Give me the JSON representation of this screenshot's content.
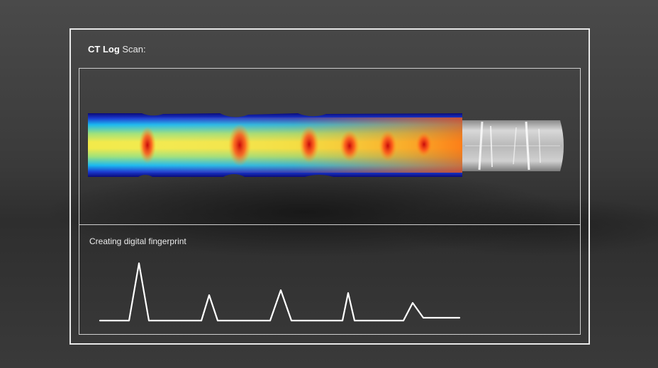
{
  "panel": {
    "title_bold": "CT Log",
    "title_rest": " Scan:"
  },
  "fingerprint": {
    "caption": "Creating digital fingerprint"
  },
  "colors": {
    "frame": "#e8e8e8",
    "background": "#3b3b3b",
    "heat_low": "#0a1aa0",
    "heat_mid": "#f0e64a",
    "heat_high": "#e02010"
  }
}
